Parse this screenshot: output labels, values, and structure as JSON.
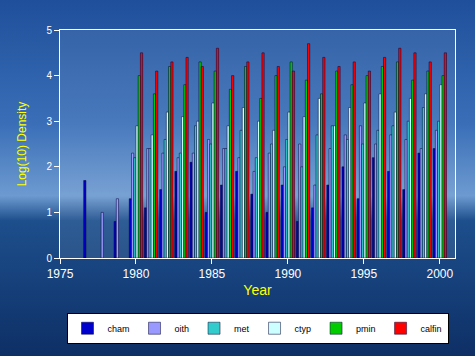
{
  "chart_data": {
    "type": "bar",
    "x_label": "Year",
    "y_label": "Log(10) Density",
    "x": [
      1977,
      1978,
      1979,
      1980,
      1981,
      1982,
      1983,
      1984,
      1985,
      1986,
      1987,
      1988,
      1989,
      1990,
      1991,
      1992,
      1993,
      1994,
      1995,
      1996,
      1997,
      1998,
      1999,
      2000
    ],
    "series": [
      {
        "name": "cham",
        "color": "#0000cc",
        "values": [
          1.7,
          null,
          0.8,
          1.3,
          1.1,
          1.5,
          1.9,
          2.1,
          1.0,
          1.6,
          1.9,
          1.4,
          1.0,
          1.6,
          0.8,
          1.1,
          1.6,
          2.0,
          1.3,
          2.2,
          1.9,
          1.5,
          2.3,
          2.4
        ]
      },
      {
        "name": "oith",
        "color": "#9999ff",
        "values": [
          null,
          1.0,
          1.3,
          2.3,
          2.4,
          2.3,
          2.2,
          2.3,
          2.6,
          2.4,
          2.2,
          1.9,
          2.3,
          2.0,
          2.5,
          1.6,
          2.4,
          2.7,
          2.9,
          2.5,
          2.7,
          2.6,
          2.4,
          2.8
        ]
      },
      {
        "name": "met",
        "color": "#33cccc",
        "values": [
          null,
          null,
          null,
          2.2,
          2.4,
          2.6,
          2.3,
          2.9,
          2.5,
          2.4,
          2.8,
          2.2,
          2.5,
          2.6,
          2.0,
          2.7,
          2.9,
          2.6,
          2.5,
          2.8,
          2.9,
          3.0,
          3.3,
          3.0
        ]
      },
      {
        "name": "ctyp",
        "color": "#ccffff",
        "values": [
          null,
          null,
          null,
          2.9,
          2.7,
          3.2,
          3.1,
          3.0,
          3.4,
          2.9,
          3.3,
          3.0,
          2.8,
          3.2,
          3.1,
          3.5,
          2.9,
          3.3,
          3.4,
          3.6,
          3.2,
          3.5,
          3.6,
          3.8
        ]
      },
      {
        "name": "pmin",
        "color": "#00cc00",
        "values": [
          null,
          null,
          null,
          4.0,
          3.6,
          4.2,
          3.8,
          4.3,
          4.1,
          3.7,
          4.2,
          3.5,
          4.0,
          4.3,
          3.9,
          3.6,
          4.1,
          3.8,
          4.0,
          4.2,
          4.3,
          3.9,
          4.1,
          4.0
        ]
      },
      {
        "name": "calfin",
        "color": "#ff0000",
        "values": [
          null,
          null,
          null,
          4.5,
          4.1,
          4.3,
          4.4,
          4.2,
          4.6,
          4.0,
          4.3,
          4.5,
          4.2,
          4.1,
          4.7,
          4.4,
          4.2,
          4.3,
          4.1,
          4.4,
          4.6,
          4.5,
          4.3,
          4.5
        ]
      }
    ],
    "xlim": [
      1975,
      2001
    ],
    "xticks": [
      1975,
      1980,
      1985,
      1990,
      1995,
      2000
    ],
    "ylim": [
      0,
      5
    ],
    "yticks": [
      0,
      1,
      2,
      3,
      4,
      5
    ],
    "grid": false,
    "legend": "bottom"
  }
}
